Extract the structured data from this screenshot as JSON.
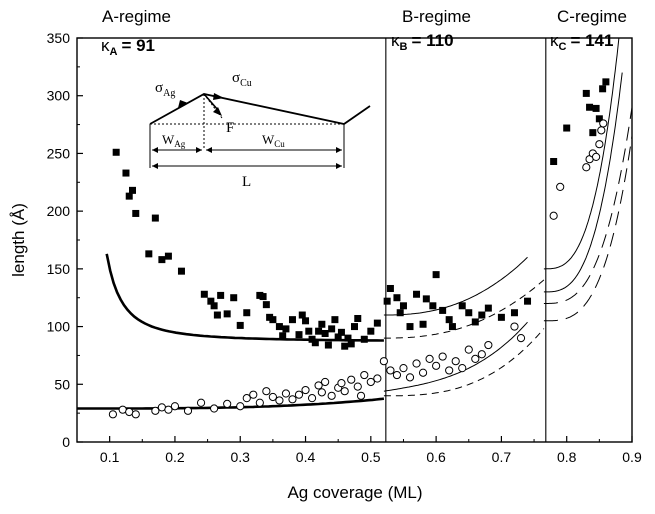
{
  "chart_data": {
    "type": "scatter",
    "title": "",
    "xlabel": "Ag coverage  (ML)",
    "ylabel": "length (Å)",
    "xlim": [
      0.05,
      0.9
    ],
    "ylim": [
      0,
      350
    ],
    "xticks": [
      "0.1",
      "0.2",
      "0.3",
      "0.4",
      "0.5",
      "0.6",
      "0.7",
      "0.8",
      "0.9"
    ],
    "yticks": [
      "0",
      "50",
      "100",
      "150",
      "200",
      "250",
      "300",
      "350"
    ],
    "regime_boundaries": [
      0.523,
      0.768
    ],
    "regimes": [
      {
        "name": "A-regime",
        "kappa_symbol": "κ",
        "kappa_sub": "A",
        "kappa_value": "= 91"
      },
      {
        "name": "B-regime",
        "kappa_symbol": "κ",
        "kappa_sub": "B",
        "kappa_value": "= 110"
      },
      {
        "name": "C-regime",
        "kappa_symbol": "κ",
        "kappa_sub": "C",
        "kappa_value": "= 141"
      }
    ],
    "inset": {
      "sigma_ag": "σ",
      "sigma_ag_sub": "Ag",
      "sigma_cu": "σ",
      "sigma_cu_sub": "Cu",
      "force": "F",
      "w_ag": "W",
      "w_ag_sub": "Ag",
      "w_cu": "W",
      "w_cu_sub": "Cu",
      "total": "L"
    },
    "series": [
      {
        "marker": "filled-square",
        "points": [
          [
            0.11,
            251
          ],
          [
            0.125,
            233
          ],
          [
            0.13,
            213
          ],
          [
            0.135,
            218
          ],
          [
            0.14,
            198
          ],
          [
            0.16,
            163
          ],
          [
            0.17,
            194
          ],
          [
            0.18,
            158
          ],
          [
            0.19,
            161
          ],
          [
            0.21,
            148
          ],
          [
            0.245,
            128
          ],
          [
            0.255,
            122
          ],
          [
            0.26,
            118
          ],
          [
            0.265,
            110
          ],
          [
            0.27,
            127
          ],
          [
            0.28,
            111
          ],
          [
            0.29,
            125
          ],
          [
            0.3,
            101
          ],
          [
            0.31,
            112
          ],
          [
            0.33,
            127
          ],
          [
            0.335,
            126
          ],
          [
            0.34,
            119
          ],
          [
            0.345,
            108
          ],
          [
            0.35,
            106
          ],
          [
            0.36,
            100
          ],
          [
            0.365,
            92
          ],
          [
            0.37,
            98
          ],
          [
            0.38,
            106
          ],
          [
            0.39,
            93
          ],
          [
            0.395,
            110
          ],
          [
            0.4,
            105
          ],
          [
            0.405,
            96
          ],
          [
            0.41,
            89
          ],
          [
            0.415,
            86
          ],
          [
            0.42,
            96
          ],
          [
            0.425,
            102
          ],
          [
            0.43,
            94
          ],
          [
            0.435,
            84
          ],
          [
            0.44,
            98
          ],
          [
            0.445,
            106
          ],
          [
            0.45,
            91
          ],
          [
            0.455,
            95
          ],
          [
            0.46,
            83
          ],
          [
            0.465,
            90
          ],
          [
            0.47,
            85
          ],
          [
            0.475,
            100
          ],
          [
            0.48,
            107
          ],
          [
            0.49,
            89
          ],
          [
            0.5,
            96
          ],
          [
            0.51,
            103
          ],
          [
            0.525,
            122
          ],
          [
            0.53,
            133
          ],
          [
            0.54,
            125
          ],
          [
            0.545,
            112
          ],
          [
            0.55,
            118
          ],
          [
            0.56,
            100
          ],
          [
            0.57,
            128
          ],
          [
            0.58,
            102
          ],
          [
            0.585,
            124
          ],
          [
            0.595,
            118
          ],
          [
            0.6,
            145
          ],
          [
            0.61,
            114
          ],
          [
            0.62,
            106
          ],
          [
            0.625,
            100
          ],
          [
            0.64,
            118
          ],
          [
            0.65,
            112
          ],
          [
            0.66,
            104
          ],
          [
            0.67,
            110
          ],
          [
            0.68,
            116
          ],
          [
            0.7,
            108
          ],
          [
            0.72,
            112
          ],
          [
            0.74,
            122
          ],
          [
            0.78,
            243
          ],
          [
            0.8,
            272
          ],
          [
            0.83,
            302
          ],
          [
            0.835,
            290
          ],
          [
            0.84,
            268
          ],
          [
            0.845,
            289
          ],
          [
            0.85,
            280
          ],
          [
            0.855,
            306
          ],
          [
            0.86,
            312
          ]
        ]
      },
      {
        "marker": "open-circle",
        "points": [
          [
            0.105,
            24
          ],
          [
            0.12,
            28
          ],
          [
            0.13,
            26
          ],
          [
            0.14,
            24
          ],
          [
            0.17,
            27
          ],
          [
            0.18,
            30
          ],
          [
            0.19,
            28
          ],
          [
            0.2,
            31
          ],
          [
            0.22,
            27
          ],
          [
            0.24,
            34
          ],
          [
            0.26,
            29
          ],
          [
            0.28,
            33
          ],
          [
            0.3,
            31
          ],
          [
            0.31,
            38
          ],
          [
            0.32,
            41
          ],
          [
            0.33,
            34
          ],
          [
            0.34,
            44
          ],
          [
            0.35,
            39
          ],
          [
            0.36,
            36
          ],
          [
            0.37,
            42
          ],
          [
            0.38,
            37
          ],
          [
            0.39,
            41
          ],
          [
            0.4,
            45
          ],
          [
            0.41,
            38
          ],
          [
            0.42,
            49
          ],
          [
            0.425,
            43
          ],
          [
            0.43,
            52
          ],
          [
            0.44,
            40
          ],
          [
            0.45,
            47
          ],
          [
            0.455,
            51
          ],
          [
            0.46,
            44
          ],
          [
            0.47,
            54
          ],
          [
            0.48,
            48
          ],
          [
            0.485,
            40
          ],
          [
            0.49,
            58
          ],
          [
            0.5,
            52
          ],
          [
            0.51,
            55
          ],
          [
            0.52,
            70
          ],
          [
            0.53,
            62
          ],
          [
            0.54,
            58
          ],
          [
            0.55,
            64
          ],
          [
            0.56,
            56
          ],
          [
            0.57,
            68
          ],
          [
            0.58,
            60
          ],
          [
            0.59,
            72
          ],
          [
            0.6,
            66
          ],
          [
            0.61,
            74
          ],
          [
            0.62,
            62
          ],
          [
            0.63,
            70
          ],
          [
            0.64,
            64
          ],
          [
            0.65,
            80
          ],
          [
            0.66,
            72
          ],
          [
            0.67,
            76
          ],
          [
            0.68,
            84
          ],
          [
            0.72,
            100
          ],
          [
            0.73,
            90
          ],
          [
            0.78,
            196
          ],
          [
            0.79,
            221
          ],
          [
            0.83,
            238
          ],
          [
            0.835,
            245
          ],
          [
            0.84,
            250
          ],
          [
            0.845,
            247
          ],
          [
            0.85,
            258
          ],
          [
            0.853,
            270
          ],
          [
            0.856,
            276
          ]
        ]
      }
    ]
  }
}
